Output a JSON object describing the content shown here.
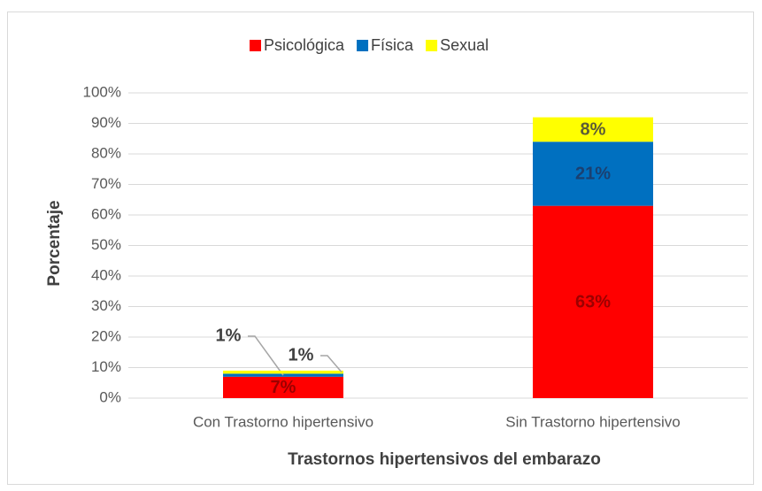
{
  "chart_data": {
    "type": "stacked_bar",
    "categories": [
      "Con Trastorno hipertensivo",
      "Sin Trastorno hipertensivo"
    ],
    "series": [
      {
        "name": "Psicológica",
        "color": "#ff0000",
        "values": [
          7,
          63
        ],
        "value_labels": [
          "7%",
          "63%"
        ]
      },
      {
        "name": "Física",
        "color": "#0070c0",
        "values": [
          1,
          21
        ],
        "value_labels": [
          "1%",
          "21%"
        ]
      },
      {
        "name": "Sexual",
        "color": "#ffff00",
        "values": [
          1,
          8
        ],
        "value_labels": [
          "1%",
          "8%"
        ]
      }
    ],
    "y_label": "Porcentaje",
    "x_label": "Trastornos hipertensivos del embarazo",
    "ylim": [
      0,
      100
    ],
    "yticks": [
      {
        "value": 0,
        "label": "0%"
      },
      {
        "value": 10,
        "label": "10%"
      },
      {
        "value": 20,
        "label": "20%"
      },
      {
        "value": 30,
        "label": "30%"
      },
      {
        "value": 40,
        "label": "40%"
      },
      {
        "value": 50,
        "label": "50%"
      },
      {
        "value": 60,
        "label": "60%"
      },
      {
        "value": 70,
        "label": "70%"
      },
      {
        "value": 80,
        "label": "80%"
      },
      {
        "value": 90,
        "label": "90%"
      },
      {
        "value": 100,
        "label": "100%"
      }
    ],
    "grid": true,
    "legend": "top"
  }
}
